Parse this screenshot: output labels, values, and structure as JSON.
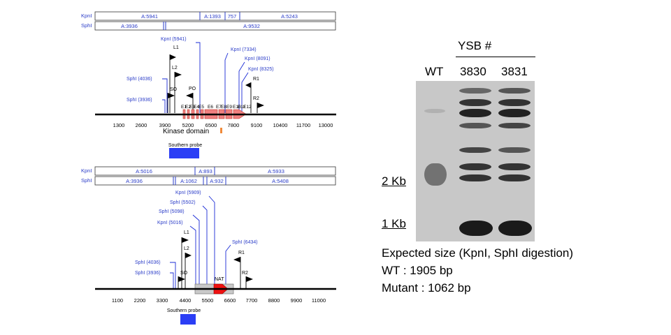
{
  "maps": [
    {
      "restriction_bars": [
        {
          "enzyme": "KpnI",
          "fragments": [
            "A:5941",
            "A:1393",
            "757",
            "A:5243"
          ]
        },
        {
          "enzyme": "SphI",
          "fragments": [
            "A:3936",
            "A:9532"
          ]
        }
      ],
      "site_labels": [
        "KpnI (5941)",
        "KpnI (7334)",
        "KpnI (8091)",
        "KpnI (8325)",
        "SphI (4036)",
        "SphI (3936)"
      ],
      "primer_labels": [
        "L1",
        "L2",
        "SO",
        "PO",
        "R1",
        "R2"
      ],
      "exon_labels": [
        "E1",
        "E2",
        "E3",
        "E4",
        "E5",
        "E6",
        "E7",
        "E8",
        "E9",
        "E10",
        "E11",
        "E12"
      ],
      "axis_ticks": [
        "1300",
        "2600",
        "3900",
        "5200",
        "6500",
        "7800",
        "9100",
        "10400",
        "11700",
        "13000"
      ],
      "feature_label": "Kinase domain",
      "probe_label": "Southern probe"
    },
    {
      "restriction_bars": [
        {
          "enzyme": "KpnI",
          "fragments": [
            "A:5016",
            "A:893",
            "A:5933"
          ]
        },
        {
          "enzyme": "SphI",
          "fragments": [
            "A:3936",
            "A:1062",
            "A:932",
            "A:5408"
          ]
        }
      ],
      "site_labels": [
        "KpnI (5909)",
        "SphI (5502)",
        "SphI (5098)",
        "KpnI (5016)",
        "SphI (6434)",
        "SphI (4036)",
        "SphI (3936)"
      ],
      "primer_labels": [
        "L1",
        "L2",
        "SO",
        "NAT",
        "R1",
        "R2"
      ],
      "axis_ticks": [
        "1100",
        "2200",
        "3300",
        "4400",
        "5500",
        "6600",
        "7700",
        "8800",
        "9900",
        "11000"
      ],
      "probe_label": "Southern probe"
    }
  ],
  "blot": {
    "group_label": "YSB #",
    "lanes": [
      "WT",
      "3830",
      "3831"
    ],
    "markers": [
      "2 Kb",
      "1 Kb"
    ],
    "caption_lines": [
      "Expected size (KpnI, SphI digestion)",
      "WT : 1905 bp",
      "Mutant : 1062 bp"
    ]
  },
  "colors": {
    "restriction_text": "#2a3cc8",
    "site_line": "#1a2bd6",
    "exon_fill": "#f08080",
    "exon_stroke": "#c0392b",
    "probe_fill": "#2b3ef5",
    "nat_fill": "#ee1111",
    "cassette_fill": "#c8c8c8",
    "kinase_bar": "#f08a3a"
  }
}
